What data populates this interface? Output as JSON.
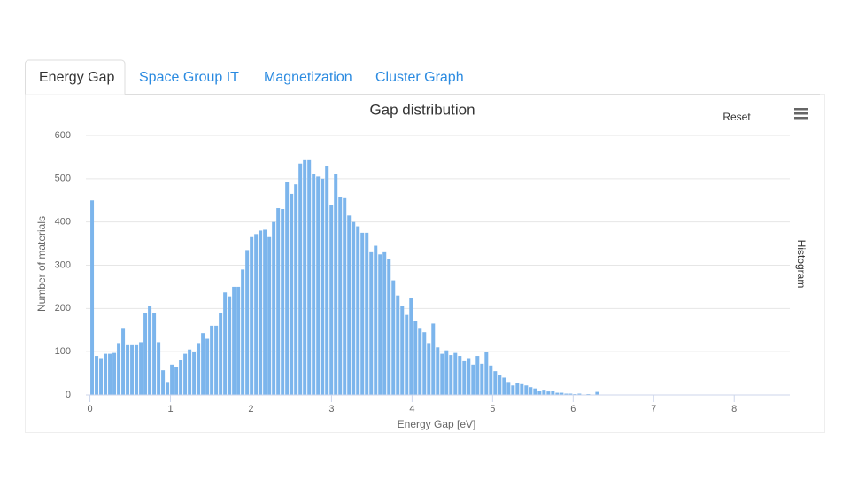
{
  "tabs": [
    "Energy Gap",
    "Space Group IT",
    "Magnetization",
    "Cluster Graph"
  ],
  "chart_data": {
    "type": "histogram",
    "title": "Gap distribution",
    "reset_label": "Reset",
    "xlabel": "Energy Gap [eV]",
    "ylabel": "Number of materials",
    "bins": [
      0,
      0.055,
      0.11,
      0.165,
      0.22,
      0.275,
      0.33,
      0.385,
      0.44,
      0.495,
      0.55,
      0.605,
      0.66,
      0.715,
      0.77,
      0.825,
      0.88,
      0.935,
      0.99,
      1.045,
      1.1,
      1.155,
      1.21,
      1.265,
      1.32,
      1.375,
      1.43,
      1.485,
      1.54,
      1.595,
      1.65,
      1.705,
      1.76,
      1.815,
      1.87,
      1.925,
      1.98,
      2.035,
      2.09,
      2.145,
      2.2,
      2.255,
      2.31,
      2.365,
      2.42,
      2.475,
      2.53,
      2.585,
      2.64,
      2.695,
      2.75,
      2.805,
      2.86,
      2.915,
      2.97,
      3.025,
      3.08,
      3.135,
      3.19,
      3.245,
      3.3,
      3.355,
      3.41,
      3.465,
      3.52,
      3.575,
      3.63,
      3.685,
      3.74,
      3.795,
      3.85,
      3.905,
      3.96,
      4.015,
      4.07,
      4.125,
      4.18,
      4.235,
      4.29,
      4.345,
      4.4,
      4.455,
      4.51,
      4.565,
      4.62,
      4.675,
      4.73,
      4.785,
      4.84,
      4.895,
      4.95,
      5.005,
      5.06,
      5.115,
      5.17,
      5.225,
      5.28,
      5.335,
      5.39,
      5.445,
      5.5,
      5.555,
      5.61,
      5.665,
      5.72,
      5.775,
      5.83,
      5.885,
      5.94,
      5.995,
      6.05,
      6.105,
      6.16,
      6.215,
      6.27,
      6.325,
      6.38,
      6.435,
      6.49,
      6.545,
      6.6,
      6.655,
      6.71,
      6.765,
      6.82,
      6.875,
      6.93,
      6.985,
      7.04,
      7.095,
      7.15,
      7.205,
      7.26,
      7.315,
      7.37,
      7.425,
      7.48,
      7.535,
      7.59,
      7.645,
      7.7,
      7.755,
      7.81,
      7.865,
      7.92,
      7.975,
      8.03,
      8.085,
      8.14,
      8.195,
      8.25,
      8.305,
      8.36,
      8.415,
      8.47,
      8.525,
      8.58,
      8.635,
      8.69
    ],
    "series": [
      {
        "name": "Histogram",
        "color": "#7cb5ec",
        "values": [
          450,
          90,
          85,
          95,
          95,
          97,
          120,
          155,
          115,
          115,
          115,
          122,
          190,
          205,
          190,
          122,
          57,
          30,
          70,
          65,
          80,
          95,
          105,
          100,
          120,
          143,
          130,
          160,
          160,
          190,
          237,
          228,
          250,
          250,
          290,
          335,
          365,
          372,
          380,
          382,
          365,
          400,
          432,
          430,
          493,
          465,
          487,
          535,
          543,
          543,
          510,
          505,
          500,
          530,
          440,
          510,
          457,
          455,
          415,
          400,
          390,
          375,
          375,
          330,
          345,
          325,
          330,
          315,
          265,
          230,
          205,
          185,
          225,
          170,
          155,
          145,
          120,
          165,
          110,
          95,
          103,
          92,
          97,
          90,
          78,
          85,
          70,
          90,
          72,
          100,
          68,
          55,
          45,
          40,
          30,
          22,
          28,
          25,
          22,
          18,
          15,
          10,
          12,
          8,
          10,
          5,
          5,
          3,
          3,
          2,
          3,
          1,
          2,
          1,
          7,
          1,
          1,
          1,
          1,
          1,
          1,
          1,
          0,
          1,
          0,
          1,
          1,
          0,
          1,
          1,
          0,
          0,
          1,
          0,
          1,
          0,
          0,
          1,
          0,
          0,
          1,
          0,
          0,
          0,
          1,
          0,
          0,
          0,
          0,
          1,
          0,
          0,
          0,
          0,
          1,
          0,
          0,
          1
        ]
      }
    ],
    "xlim": [
      -0.05,
      8.69
    ],
    "xticks": [
      0,
      1,
      2,
      3,
      4,
      5,
      6,
      7,
      8
    ],
    "ylim": [
      0,
      600
    ],
    "yticks": [
      0,
      100,
      200,
      300,
      400,
      500,
      600
    ],
    "grid": true
  }
}
